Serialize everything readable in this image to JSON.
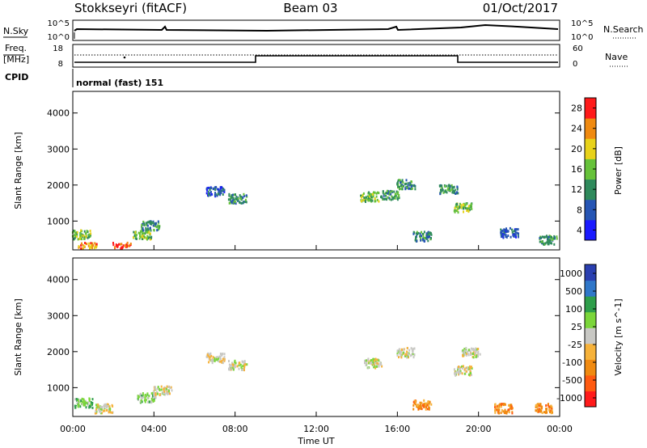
{
  "header": {
    "station": "Stokkseyri (fitACF)",
    "beam": "Beam 03",
    "date": "01/Oct/2017"
  },
  "top_panels": {
    "nsky_label": "N.Sky",
    "nsky_ticks": [
      "10^5",
      "10^0"
    ],
    "nsearch_label": "N.Search",
    "nsearch_ticks": [
      "10^5",
      "10^0"
    ],
    "freq_label_line1": "Freq.",
    "freq_label_line2": "[MHz]",
    "freq_ticks": [
      "18",
      "8"
    ],
    "nave_label": "Nave",
    "nave_ticks": [
      "60",
      "0"
    ],
    "cpid_label": "CPID",
    "cpid_text": "normal (fast) 151"
  },
  "chart_data": [
    {
      "type": "heatmap",
      "name": "power",
      "ylabel": "Slant Range [km]",
      "yticks": [
        "1000",
        "2000",
        "3000",
        "4000"
      ],
      "ylim": [
        200,
        4600
      ],
      "xlim": [
        0,
        24
      ],
      "colorbar_label": "Power [dB]",
      "colorbar_ticks": [
        "4",
        "8",
        "12",
        "16",
        "20",
        "24",
        "28"
      ],
      "colors": [
        "#1a1aff",
        "#2655b4",
        "#2f8a5c",
        "#66c23a",
        "#e8d21a",
        "#f08a10",
        "#ff1a1a"
      ],
      "clusters": [
        {
          "t": 0.4,
          "r": 650,
          "level": 3
        },
        {
          "t": 0.7,
          "r": 300,
          "level": 5
        },
        {
          "t": 2.4,
          "r": 300,
          "level": 6
        },
        {
          "t": 3.4,
          "r": 650,
          "level": 3
        },
        {
          "t": 3.8,
          "r": 900,
          "level": 2
        },
        {
          "t": 7.0,
          "r": 1850,
          "level": 1
        },
        {
          "t": 8.1,
          "r": 1650,
          "level": 2
        },
        {
          "t": 14.6,
          "r": 1700,
          "level": 3
        },
        {
          "t": 15.6,
          "r": 1750,
          "level": 2
        },
        {
          "t": 16.4,
          "r": 2050,
          "level": 2
        },
        {
          "t": 17.2,
          "r": 600,
          "level": 2
        },
        {
          "t": 18.5,
          "r": 1900,
          "level": 2
        },
        {
          "t": 19.2,
          "r": 1400,
          "level": 3
        },
        {
          "t": 21.5,
          "r": 700,
          "level": 1
        },
        {
          "t": 23.4,
          "r": 500,
          "level": 2
        }
      ]
    },
    {
      "type": "heatmap",
      "name": "velocity",
      "ylabel": "Slant Range [km]",
      "yticks": [
        "1000",
        "2000",
        "3000",
        "4000"
      ],
      "ylim": [
        200,
        4600
      ],
      "xlim": [
        0,
        24
      ],
      "xlabel": "Time UT",
      "xticks": [
        "00:00",
        "04:00",
        "08:00",
        "12:00",
        "16:00",
        "20:00",
        "00:00"
      ],
      "colorbar_label": "Velocity [m s^-1]",
      "colorbar_ticks": [
        "1000",
        "500",
        "100",
        "25",
        "-25",
        "-100",
        "-500",
        "-1000"
      ],
      "colors": [
        "#2a3fb0",
        "#2f77c9",
        "#2e9e4a",
        "#7bd63a",
        "#c8c8c4",
        "#f6b23a",
        "#f08a10",
        "#ff5a10",
        "#ff1a1a"
      ],
      "clusters": [
        {
          "t": 0.5,
          "r": 600,
          "level": 3
        },
        {
          "t": 1.5,
          "r": 450,
          "level": 4
        },
        {
          "t": 3.6,
          "r": 750,
          "level": 3
        },
        {
          "t": 4.4,
          "r": 950,
          "level": 4
        },
        {
          "t": 7.0,
          "r": 1850,
          "level": 4
        },
        {
          "t": 8.1,
          "r": 1650,
          "level": 4
        },
        {
          "t": 14.8,
          "r": 1700,
          "level": 4
        },
        {
          "t": 16.4,
          "r": 2000,
          "level": 4
        },
        {
          "t": 17.2,
          "r": 550,
          "level": 6
        },
        {
          "t": 19.2,
          "r": 1500,
          "level": 4
        },
        {
          "t": 19.6,
          "r": 2000,
          "level": 4
        },
        {
          "t": 21.2,
          "r": 450,
          "level": 6
        },
        {
          "t": 23.2,
          "r": 450,
          "level": 6
        }
      ]
    }
  ]
}
